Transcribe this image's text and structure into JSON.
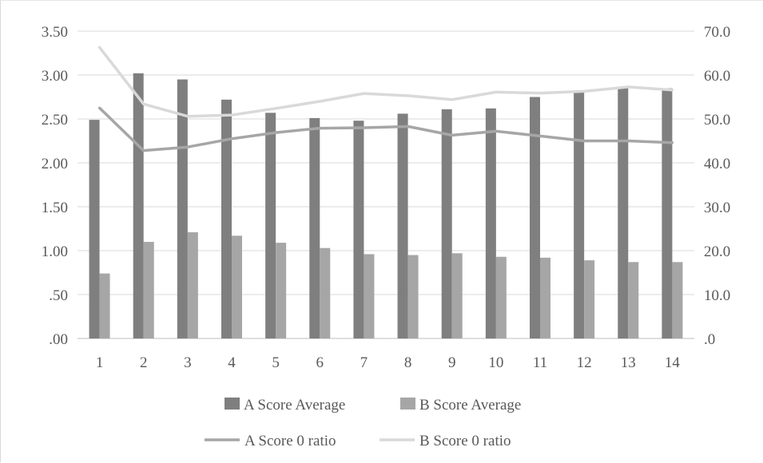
{
  "chart_data": {
    "type": "bar",
    "categories": [
      "1",
      "2",
      "3",
      "4",
      "5",
      "6",
      "7",
      "8",
      "9",
      "10",
      "11",
      "12",
      "13",
      "14"
    ],
    "series": [
      {
        "name": "A Score Average",
        "kind": "bar",
        "axis": "left",
        "color": "#7f7f7f",
        "values": [
          2.49,
          3.02,
          2.95,
          2.72,
          2.57,
          2.51,
          2.48,
          2.56,
          2.61,
          2.62,
          2.75,
          2.81,
          2.86,
          2.85
        ]
      },
      {
        "name": "B Score Average",
        "kind": "bar",
        "axis": "left",
        "color": "#a6a6a6",
        "values": [
          0.74,
          1.1,
          1.21,
          1.17,
          1.09,
          1.03,
          0.96,
          0.95,
          0.97,
          0.93,
          0.92,
          0.89,
          0.87,
          0.87
        ]
      },
      {
        "name": "A Score 0 ratio",
        "kind": "line",
        "axis": "right",
        "color": "#a6a6a6",
        "values": [
          52.5,
          42.8,
          43.6,
          45.5,
          46.9,
          47.9,
          48.0,
          48.3,
          46.3,
          47.2,
          46.1,
          45.0,
          45.0,
          44.6
        ]
      },
      {
        "name": "B Score 0 ratio",
        "kind": "line",
        "axis": "right",
        "color": "#d9d9d9",
        "values": [
          66.3,
          53.4,
          50.6,
          50.9,
          52.4,
          54.0,
          55.8,
          55.3,
          54.4,
          56.1,
          55.9,
          56.3,
          57.3,
          56.6
        ]
      }
    ],
    "ylim": [
      0,
      3.5
    ],
    "ytick_labels": [
      "3.50",
      "3.00",
      "2.50",
      "2.00",
      "1.50",
      "1.00",
      ".50",
      ".00"
    ],
    "y2lim": [
      0,
      70
    ],
    "y2tick_labels": [
      "70.0",
      "60.0",
      "50.0",
      "40.0",
      "30.0",
      "20.0",
      "10.0",
      ".0"
    ],
    "grid": true,
    "legend_placement": "bottom"
  }
}
